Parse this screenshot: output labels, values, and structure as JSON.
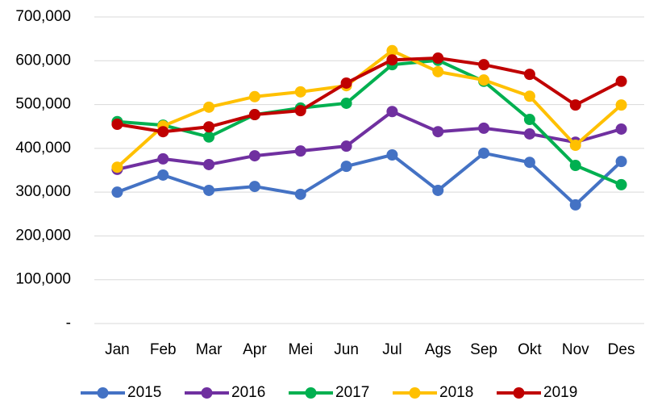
{
  "chart_data": {
    "type": "line",
    "categories": [
      "Jan",
      "Feb",
      "Mar",
      "Apr",
      "Mei",
      "Jun",
      "Jul",
      "Ags",
      "Sep",
      "Okt",
      "Nov",
      "Des"
    ],
    "series": [
      {
        "name": "2015",
        "color": "#4472c4",
        "values": [
          300000,
          339000,
          304000,
          313000,
          295000,
          359000,
          385000,
          304000,
          389000,
          368000,
          271000,
          370000
        ]
      },
      {
        "name": "2016",
        "color": "#7030a0",
        "values": [
          352000,
          376000,
          363000,
          383000,
          394000,
          405000,
          484000,
          438000,
          446000,
          433000,
          414000,
          444000
        ]
      },
      {
        "name": "2017",
        "color": "#00b050",
        "values": [
          461000,
          453000,
          426000,
          477000,
          492000,
          503000,
          591000,
          601000,
          553000,
          466000,
          361000,
          317000
        ]
      },
      {
        "name": "2018",
        "color": "#ffc000",
        "values": [
          357000,
          451000,
          494000,
          518000,
          529000,
          543000,
          623000,
          575000,
          556000,
          519000,
          407000,
          499000
        ]
      },
      {
        "name": "2019",
        "color": "#c00000",
        "values": [
          455000,
          438000,
          449000,
          477000,
          486000,
          549000,
          602000,
          606000,
          591000,
          569000,
          499000,
          553000
        ]
      }
    ],
    "ylim": [
      0,
      700000
    ],
    "yticks": [
      {
        "value": 0,
        "label": "-"
      },
      {
        "value": 100000,
        "label": "100,000"
      },
      {
        "value": 200000,
        "label": "200,000"
      },
      {
        "value": 300000,
        "label": "300,000"
      },
      {
        "value": 400000,
        "label": "400,000"
      },
      {
        "value": 500000,
        "label": "500,000"
      },
      {
        "value": 600000,
        "label": "600,000"
      },
      {
        "value": 700000,
        "label": "700,000"
      }
    ],
    "grid": true,
    "legend": "bottom"
  }
}
